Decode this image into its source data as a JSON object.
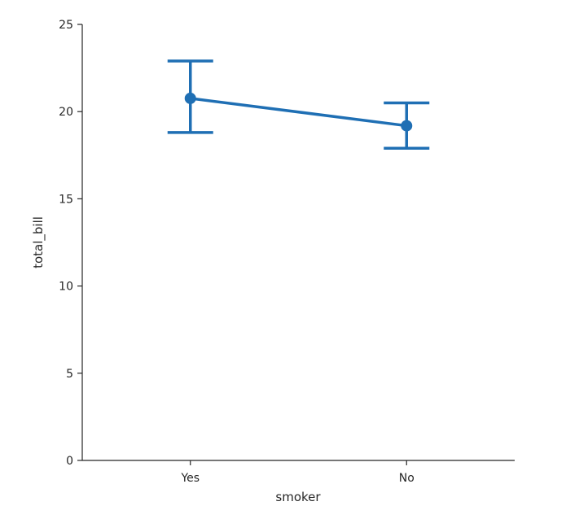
{
  "chart_data": {
    "type": "line",
    "categories": [
      "Yes",
      "No"
    ],
    "series": [
      {
        "values": [
          20.76,
          19.19
        ],
        "ci_low": [
          18.8,
          17.9
        ],
        "ci_high": [
          22.9,
          20.5
        ]
      }
    ],
    "xlabel": "smoker",
    "ylabel": "total_bill",
    "ylim": [
      0,
      25
    ],
    "yticks": [
      0,
      5,
      10,
      15,
      20,
      25
    ],
    "grid": false,
    "color": "#1f6fb4"
  }
}
